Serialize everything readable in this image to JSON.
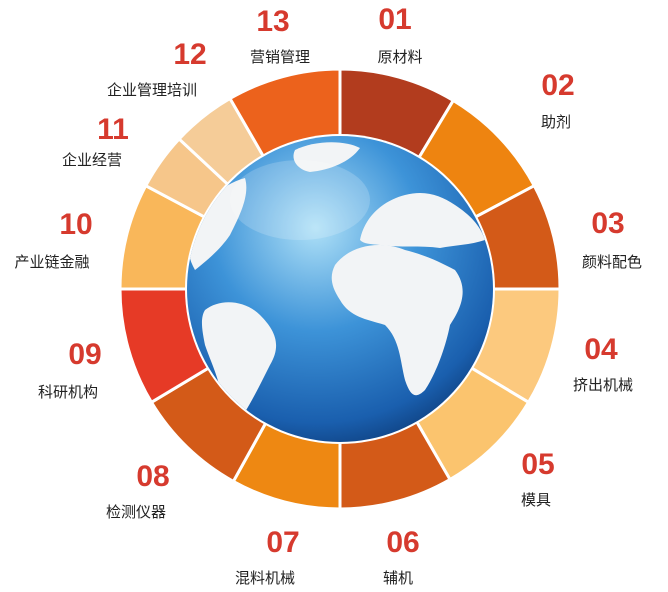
{
  "number_color": "#d63a2e",
  "globe": {
    "ocean": "#1e6fc0",
    "highlight": "#aee0f7",
    "land": "#f2f4f6"
  },
  "segments": [
    {
      "number": "01",
      "label": "原材料",
      "color": "#b23c1e",
      "start": 0,
      "end": 31
    },
    {
      "number": "02",
      "label": "助剂",
      "color": "#ee8410",
      "start": 31,
      "end": 62
    },
    {
      "number": "03",
      "label": "颜料配色",
      "color": "#d35a18",
      "start": 62,
      "end": 90
    },
    {
      "number": "04",
      "label": "挤出机械",
      "color": "#fcc97e",
      "start": 90,
      "end": 121
    },
    {
      "number": "05",
      "label": "模具",
      "color": "#fbc46e",
      "start": 121,
      "end": 150
    },
    {
      "number": "06",
      "label": "辅机",
      "color": "#d35a18",
      "start": 150,
      "end": 180
    },
    {
      "number": "07",
      "label": "混料机械",
      "color": "#ee8812",
      "start": 180,
      "end": 209
    },
    {
      "number": "08",
      "label": "检测仪器",
      "color": "#d35a18",
      "start": 209,
      "end": 239
    },
    {
      "number": "09",
      "label": "科研机构",
      "color": "#e63a26",
      "start": 239,
      "end": 270
    },
    {
      "number": "10",
      "label": "产业链金融",
      "color": "#f9b75a",
      "start": 270,
      "end": 298
    },
    {
      "number": "11",
      "label": "企业经营",
      "color": "#f6c68a",
      "start": 298,
      "end": 313
    },
    {
      "number": "12",
      "label": "企业管理培训",
      "color": "#f5cc98",
      "start": 313,
      "end": 330
    },
    {
      "number": "13",
      "label": "营销管理",
      "color": "#ec621c",
      "start": 330,
      "end": 360
    }
  ]
}
